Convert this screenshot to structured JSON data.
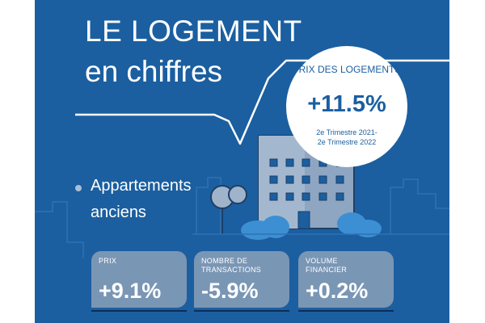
{
  "header": {
    "title_line1": "LE LOGEMENT",
    "title_line2": "en chiffres"
  },
  "highlight": {
    "label": "PRIX DES LOGEMENTS",
    "value": "+11.5%",
    "period_line1": "2e Trimestre 2021-",
    "period_line2": "2e Trimestre 2022"
  },
  "category": {
    "line1": "Appartements",
    "line2": "anciens"
  },
  "stats": [
    {
      "label": "PRIX",
      "value": "+9.1%"
    },
    {
      "label": "NOMBRE DE TRANSACTIONS",
      "value": "-5.9%"
    },
    {
      "label": "VOLUME FINANCIER",
      "value": "+0.2%"
    }
  ],
  "colors": {
    "background": "#1b5fa0",
    "card": "#7a96b5",
    "building": "#8ea6c1",
    "tree": "#9fb4cb",
    "accent_dark": "#0e2d55",
    "text": "#ffffff"
  }
}
